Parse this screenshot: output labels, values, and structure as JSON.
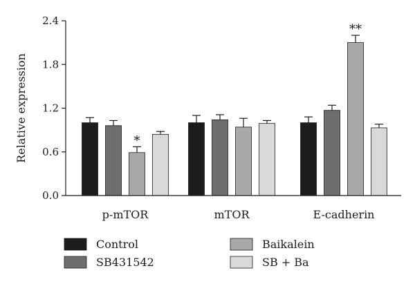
{
  "chart_data": {
    "type": "bar",
    "title": "",
    "xlabel": "",
    "ylabel": "Relative expression",
    "ylim": [
      0,
      2.4
    ],
    "yticks": [
      "0.0",
      "0.6",
      "1.2",
      "1.8",
      "2.4"
    ],
    "categories": [
      "p-mTOR",
      "mTOR",
      "E-cadherin"
    ],
    "series": [
      {
        "name": "Control",
        "color": "#1c1c1c",
        "values": [
          1.0,
          1.0,
          1.0
        ],
        "errors": [
          0.07,
          0.1,
          0.08
        ]
      },
      {
        "name": "SB431542",
        "color": "#6e6e6e",
        "values": [
          0.96,
          1.04,
          1.17
        ],
        "errors": [
          0.07,
          0.07,
          0.07
        ]
      },
      {
        "name": "Baikalein",
        "color": "#a9a9a9",
        "values": [
          0.59,
          0.94,
          2.1
        ],
        "errors": [
          0.08,
          0.12,
          0.1
        ]
      },
      {
        "name": "SB + Ba",
        "color": "#d9d9d9",
        "values": [
          0.84,
          0.99,
          0.93
        ],
        "errors": [
          0.04,
          0.04,
          0.05
        ]
      }
    ],
    "annotations": [
      {
        "text": "*",
        "category": "p-mTOR",
        "series": "Baikalein"
      },
      {
        "text": "**",
        "category": "E-cadherin",
        "series": "Baikalein"
      }
    ],
    "grid": false,
    "legend_position": "bottom"
  }
}
